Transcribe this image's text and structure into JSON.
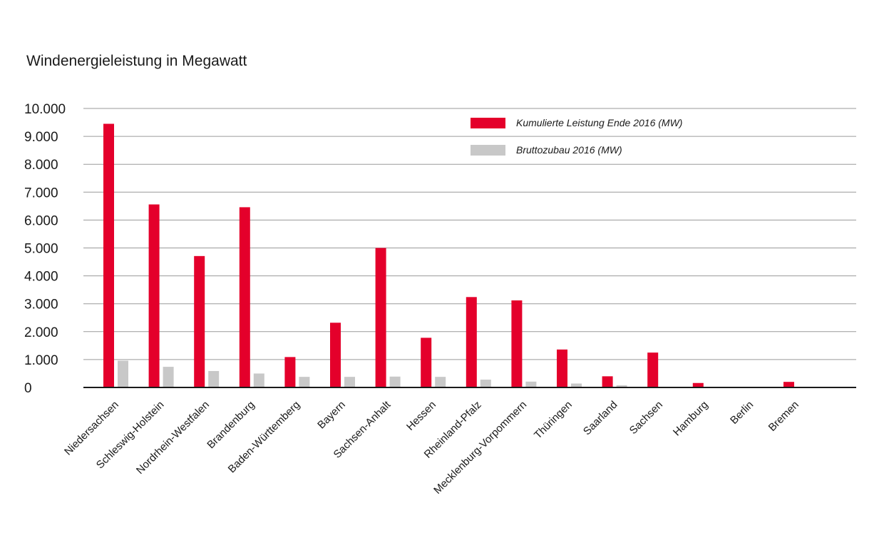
{
  "title": "Windenergieleistung in Megawatt",
  "colors": {
    "primary": "#e4002b",
    "secondary": "#c8c8c8",
    "grid": "#9a9a9a",
    "axis": "#1a1a1a"
  },
  "chart_data": {
    "type": "bar",
    "title": "Windenergieleistung in Megawatt",
    "xlabel": "",
    "ylabel": "",
    "ylim": [
      0,
      10000
    ],
    "yticks": [
      0,
      1000,
      2000,
      3000,
      4000,
      5000,
      6000,
      7000,
      8000,
      9000,
      10000
    ],
    "ytick_labels": [
      "0",
      "1.000",
      "2.000",
      "3.000",
      "4.000",
      "5.000",
      "6.000",
      "7.000",
      "8.000",
      "9.000",
      "10.000"
    ],
    "grid": true,
    "legend_position": "top-right",
    "categories": [
      "Niedersachsen",
      "Schleswig-Holstein",
      "Nordrhein-Westfalen",
      "Brandenburg",
      "Baden-Württemberg",
      "Bayern",
      "Sachsen-Anhalt",
      "Hessen",
      "Rheinland-Pfalz",
      "Mecklenburg-Vorpommern",
      "Thüringen",
      "Saarland",
      "Sachsen",
      "Hamburg",
      "Berlin",
      "Bremen"
    ],
    "series": [
      {
        "name": "Kumulierte Leistung Ende 2016 (MW)",
        "color": "#e4002b",
        "values": [
          9450,
          6560,
          4710,
          6460,
          1090,
          2320,
          5000,
          1780,
          3240,
          3120,
          1360,
          400,
          1250,
          160,
          10,
          200
        ]
      },
      {
        "name": "Bruttozubau 2016 (MW)",
        "color": "#c8c8c8",
        "values": [
          960,
          740,
          590,
          500,
          380,
          380,
          390,
          380,
          280,
          210,
          140,
          80,
          20,
          10,
          0,
          10
        ]
      }
    ]
  }
}
